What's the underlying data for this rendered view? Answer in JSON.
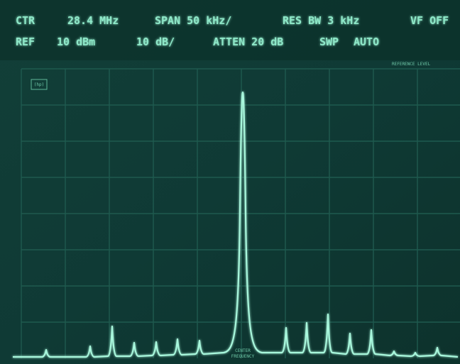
{
  "header": {
    "row1": [
      "CTR",
      "28.4 MHz",
      "SPAN 50 kHz/",
      "RES BW 3 kHz",
      "VF OFF"
    ],
    "row2": [
      "REF",
      "10 dBm",
      "10 dB/",
      "ATTEN 20 dB",
      "SWP",
      "AUTO"
    ]
  },
  "screen": {
    "logo": "(hp)",
    "reference_label": "REFERENCE LEVEL",
    "center_label": [
      "CENTER",
      "FREQUENCY"
    ]
  }
}
